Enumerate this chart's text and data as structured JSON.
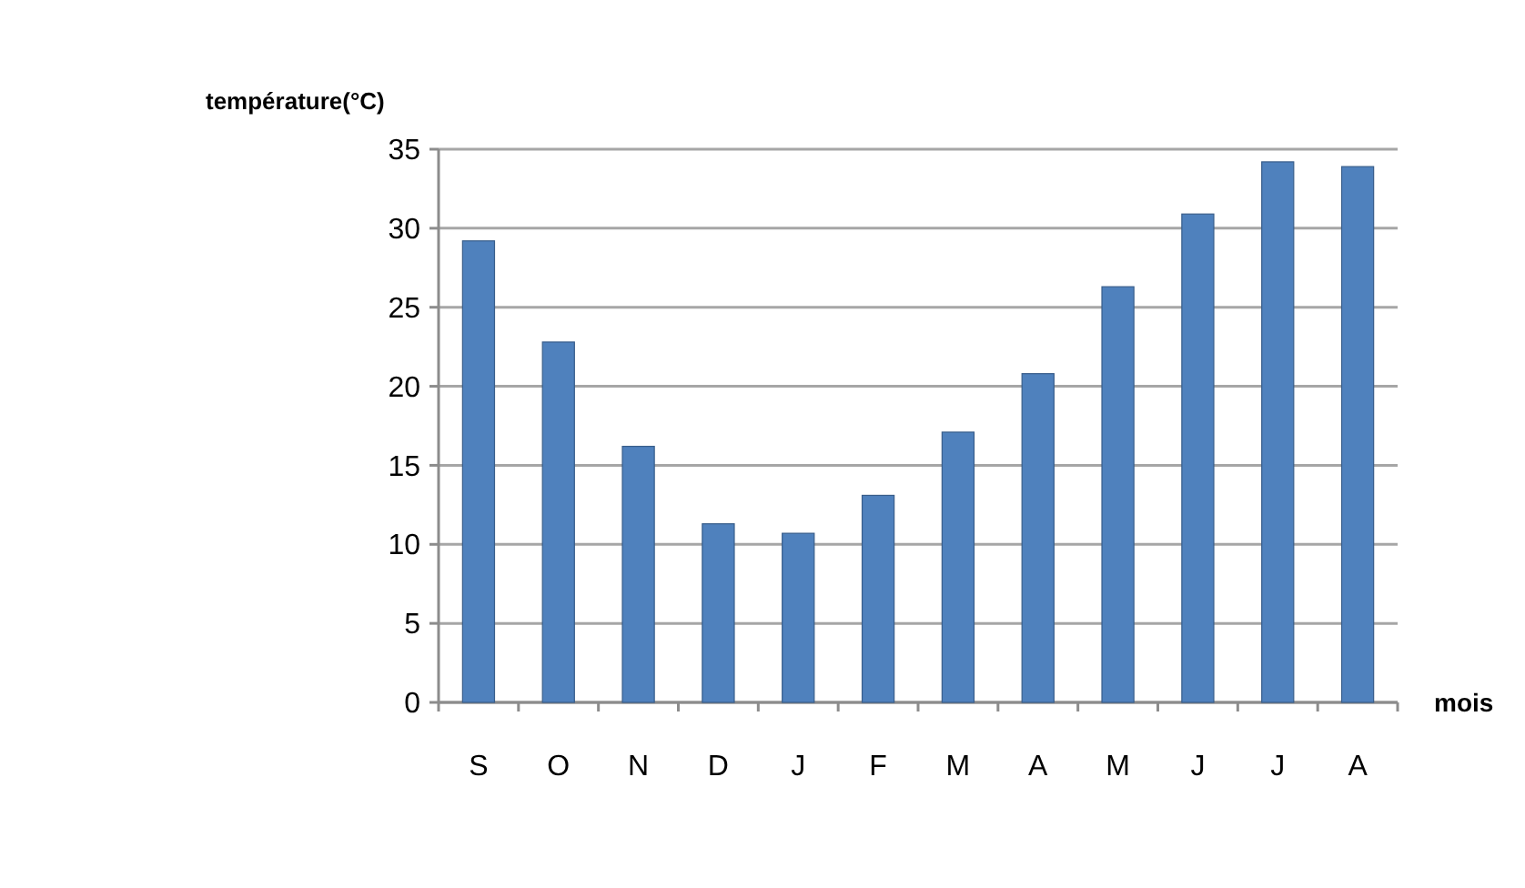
{
  "chart_data": {
    "type": "bar",
    "ylabel": "température(°C)",
    "xlabel": "mois",
    "categories": [
      "S",
      "O",
      "N",
      "D",
      "J",
      "F",
      "M",
      "A",
      "M",
      "J",
      "J",
      "A"
    ],
    "values": [
      29.2,
      22.8,
      16.2,
      11.3,
      10.7,
      13.1,
      17.1,
      20.8,
      26.3,
      30.9,
      34.2,
      33.9
    ],
    "color": "#4f81bd",
    "ylim": [
      0,
      35
    ],
    "yticks": [
      0,
      5,
      10,
      15,
      20,
      25,
      30,
      35
    ],
    "grid": "y"
  }
}
